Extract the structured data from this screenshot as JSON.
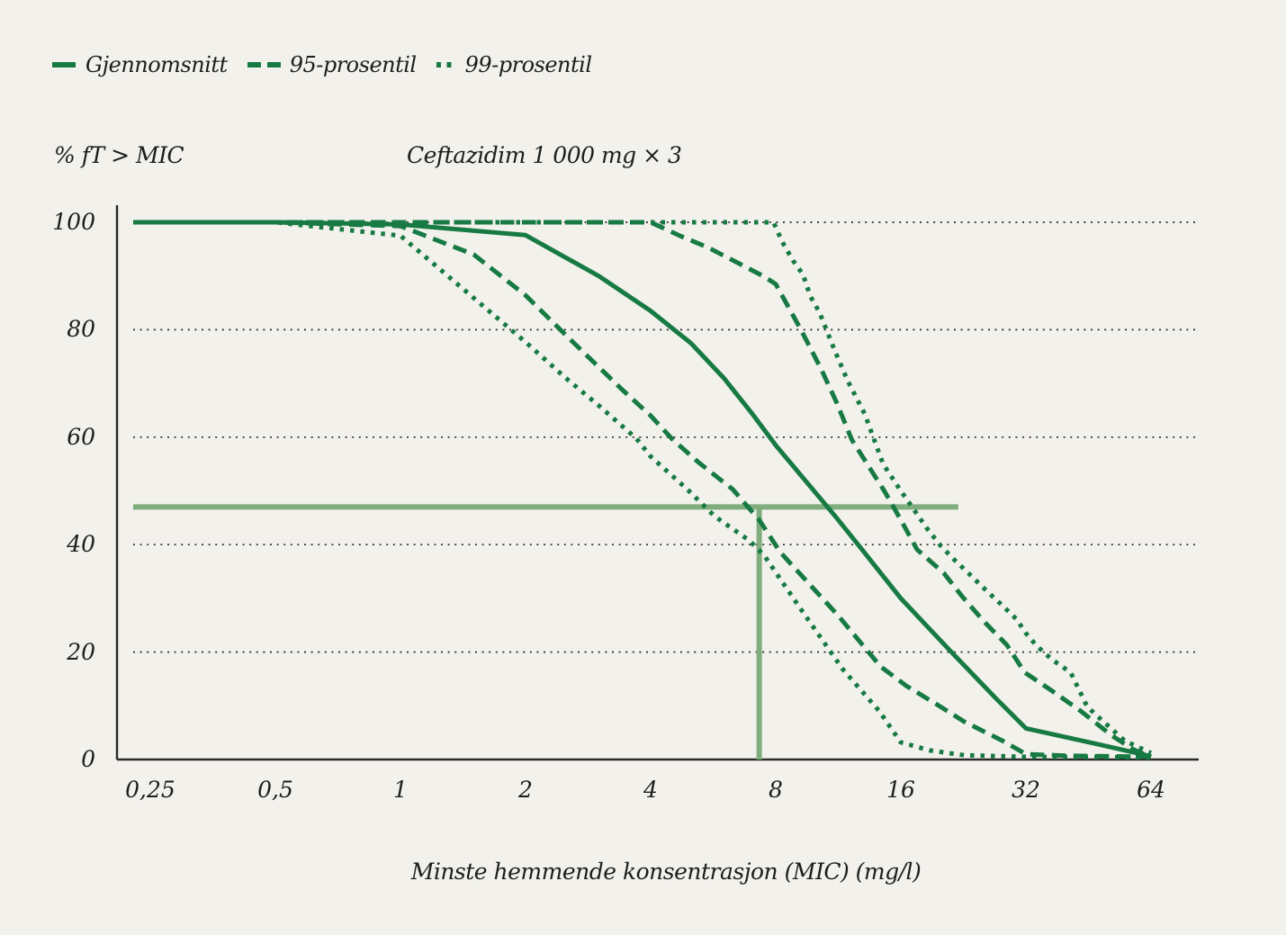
{
  "legend": {
    "items": [
      {
        "label": "Gjennomsnitt",
        "style": "solid"
      },
      {
        "label": "95-prosentil",
        "style": "dashed"
      },
      {
        "label": "99-prosentil",
        "style": "dotted"
      }
    ]
  },
  "labels": {
    "y_axis": "% fT > MIC",
    "title": "Ceftazidim 1 000 mg × 3",
    "x_axis": "Minste hemmende konsentrasjon (MIC) (mg/l)"
  },
  "colors": {
    "line_green": "#177a43",
    "reference_green": "#80ad7d",
    "background": "#f2f1ec",
    "text": "#1d1d1b",
    "grid": "#2b2b29"
  },
  "chart_data": {
    "type": "line",
    "title": "Ceftazidim 1 000 mg × 3",
    "xlabel": "Minste hemmende konsentrasjon (MIC) (mg/l)",
    "ylabel": "% fT > MIC",
    "x_scale": "log2",
    "xlim": [
      0.25,
      64
    ],
    "ylim": [
      0,
      100
    ],
    "grid": "horizontal dotted lines at y ticks",
    "legend_position": "top-left",
    "x_ticks": {
      "values": [
        0.25,
        0.5,
        1,
        2,
        4,
        8,
        16,
        32,
        64
      ],
      "labels": [
        "0,25",
        "0,5",
        "1",
        "2",
        "4",
        "8",
        "16",
        "32",
        "64"
      ]
    },
    "y_ticks": {
      "values": [
        0,
        20,
        40,
        60,
        80,
        100
      ],
      "labels": [
        "0",
        "20",
        "40",
        "60",
        "80",
        "100"
      ]
    },
    "series": [
      {
        "name": "99-prosentil (øvre)",
        "style": "dotted",
        "points": [
          [
            0.25,
            100
          ],
          [
            7.9,
            100
          ],
          [
            8.3,
            96.3
          ],
          [
            8.8,
            92.9
          ],
          [
            9.3,
            90.3
          ],
          [
            9.7,
            86.2
          ],
          [
            10.2,
            83.2
          ],
          [
            11,
            76.8
          ],
          [
            11.9,
            70.6
          ],
          [
            13.1,
            64.3
          ],
          [
            14.5,
            55
          ],
          [
            16,
            50
          ],
          [
            18.5,
            43
          ],
          [
            20,
            39.7
          ],
          [
            21.5,
            37.2
          ],
          [
            23.4,
            34.5
          ],
          [
            25.8,
            31.3
          ],
          [
            27.7,
            29.1
          ],
          [
            30.4,
            26.1
          ],
          [
            32,
            23.5
          ],
          [
            34,
            21.1
          ],
          [
            37,
            18.6
          ],
          [
            41,
            16.2
          ],
          [
            44.9,
            9.9
          ],
          [
            46.9,
            8.5
          ],
          [
            55.3,
            3.5
          ],
          [
            62.7,
            1.5
          ],
          [
            64,
            1.2
          ]
        ]
      },
      {
        "name": "99-prosentil (nedre)",
        "style": "dotted",
        "points": [
          [
            0.25,
            100
          ],
          [
            0.5,
            100
          ],
          [
            1,
            97.5
          ],
          [
            2,
            77.7
          ],
          [
            2.5,
            71
          ],
          [
            3,
            65.9
          ],
          [
            3.7,
            59.7
          ],
          [
            4,
            56.4
          ],
          [
            4.9,
            50.3
          ],
          [
            5.7,
            45.3
          ],
          [
            6.9,
            40.8
          ],
          [
            7.5,
            38
          ],
          [
            9.1,
            28.5
          ],
          [
            11.6,
            16.8
          ],
          [
            14.2,
            9
          ],
          [
            16,
            3.2
          ],
          [
            18.8,
            1.7
          ],
          [
            22.7,
            0.8
          ],
          [
            32,
            0.5
          ],
          [
            64,
            0.4
          ]
        ]
      },
      {
        "name": "95-prosentil (øvre)",
        "style": "dashed",
        "points": [
          [
            0.25,
            100
          ],
          [
            4,
            100
          ],
          [
            4.7,
            97.5
          ],
          [
            5.5,
            95.3
          ],
          [
            6.5,
            92.4
          ],
          [
            7.5,
            89.9
          ],
          [
            8,
            88.5
          ],
          [
            9.2,
            80
          ],
          [
            10.3,
            72.6
          ],
          [
            11.2,
            66.5
          ],
          [
            12.2,
            59.5
          ],
          [
            14.6,
            50
          ],
          [
            16,
            44.6
          ],
          [
            17.5,
            39.1
          ],
          [
            20.3,
            34.7
          ],
          [
            22.5,
            30.3
          ],
          [
            25.5,
            25.5
          ],
          [
            28.8,
            21.3
          ],
          [
            31.8,
            16.2
          ],
          [
            36.8,
            12.9
          ],
          [
            43.4,
            9
          ],
          [
            51.6,
            4.4
          ],
          [
            58.3,
            1.8
          ],
          [
            64,
            0.5
          ]
        ]
      },
      {
        "name": "95-prosentil (nedre)",
        "style": "dashed",
        "points": [
          [
            0.25,
            100
          ],
          [
            0.5,
            100
          ],
          [
            1,
            99.3
          ],
          [
            1.5,
            94
          ],
          [
            2,
            86.4
          ],
          [
            2.6,
            77.7
          ],
          [
            3.4,
            69
          ],
          [
            4,
            64
          ],
          [
            4.5,
            59.7
          ],
          [
            5.2,
            55.4
          ],
          [
            6.3,
            50.3
          ],
          [
            7.3,
            44.6
          ],
          [
            8.2,
            38.6
          ],
          [
            11.3,
            26.8
          ],
          [
            14.3,
            17.3
          ],
          [
            16.5,
            13.7
          ],
          [
            19.4,
            10.4
          ],
          [
            22.8,
            7
          ],
          [
            28.1,
            3.5
          ],
          [
            32,
            1
          ],
          [
            40,
            0.7
          ],
          [
            64,
            0.5
          ]
        ]
      },
      {
        "name": "Gjennomsnitt",
        "style": "solid",
        "points": [
          [
            0.25,
            100
          ],
          [
            0.5,
            100
          ],
          [
            1,
            99.6
          ],
          [
            2,
            97.6
          ],
          [
            3,
            90
          ],
          [
            4,
            83.5
          ],
          [
            5,
            77.5
          ],
          [
            6,
            71
          ],
          [
            7,
            64.5
          ],
          [
            8,
            58.5
          ],
          [
            11.2,
            45
          ],
          [
            12.9,
            39.1
          ],
          [
            16,
            30
          ],
          [
            21,
            20.3
          ],
          [
            27,
            11.5
          ],
          [
            32,
            5.8
          ],
          [
            48,
            2.8
          ],
          [
            64,
            0.6
          ]
        ]
      }
    ],
    "reference_lines": {
      "horizontal": {
        "y": 47,
        "x_start": "plot-left",
        "x_end": 22
      },
      "vertical": {
        "x": 7.3,
        "y_start": 0,
        "y_end": 47
      }
    }
  }
}
